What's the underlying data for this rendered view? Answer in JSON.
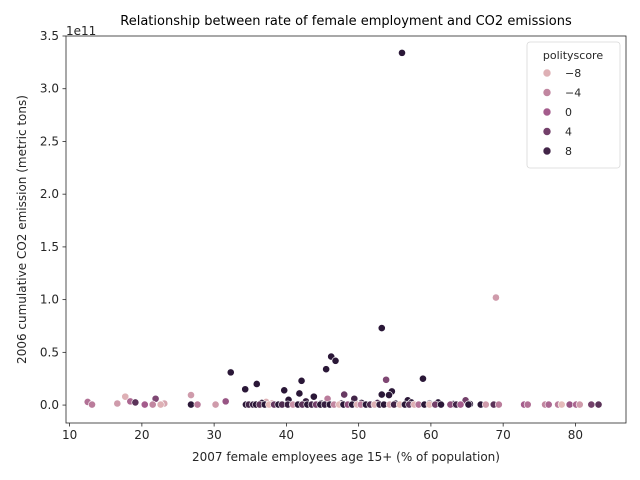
{
  "chart_data": {
    "type": "scatter",
    "title": "Relationship between rate of female employment and CO2 emissions",
    "xlabel": "2007 female employees age 15+ (% of population)",
    "ylabel": "2006 cumulative CO2 emission (metric tons)",
    "y_offset_text": "1e11",
    "xlim": [
      9.5,
      87
    ],
    "ylim": [
      -0.17,
      3.5
    ],
    "x_ticks": [
      10,
      20,
      30,
      40,
      50,
      60,
      70,
      80
    ],
    "x_tick_labels": [
      "10",
      "20",
      "30",
      "40",
      "50",
      "60",
      "70",
      "80"
    ],
    "y_ticks": [
      0,
      0.5,
      1.0,
      1.5,
      2.0,
      2.5,
      3.0,
      3.5
    ],
    "y_tick_labels": [
      "0.0",
      "0.5",
      "1.0",
      "1.5",
      "2.0",
      "2.5",
      "3.0",
      "3.5"
    ],
    "y_unit_scale": "1e11 metric tons",
    "hue_variable": "polityscore",
    "hue_range": [
      -10,
      10
    ],
    "colors": {
      "hue_low": "#ecc5bf",
      "hue_mid": "#a45c8c",
      "hue_high": "#2a1737"
    },
    "legend": {
      "title": "polityscore",
      "location": "upper right",
      "entries": [
        {
          "label": "−8",
          "value": -8
        },
        {
          "label": "−4",
          "value": -4
        },
        {
          "label": "0",
          "value": 0
        },
        {
          "label": "4",
          "value": 4
        },
        {
          "label": "8",
          "value": 8
        }
      ]
    },
    "points": [
      {
        "x": 56.0,
        "y": 3.34,
        "hue": 10
      },
      {
        "x": 69.0,
        "y": 1.02,
        "hue": -6
      },
      {
        "x": 53.2,
        "y": 0.73,
        "hue": 10
      },
      {
        "x": 46.2,
        "y": 0.46,
        "hue": 10
      },
      {
        "x": 46.8,
        "y": 0.42,
        "hue": 10
      },
      {
        "x": 45.5,
        "y": 0.34,
        "hue": 10
      },
      {
        "x": 32.3,
        "y": 0.31,
        "hue": 10
      },
      {
        "x": 58.9,
        "y": 0.25,
        "hue": 10
      },
      {
        "x": 53.8,
        "y": 0.24,
        "hue": 3
      },
      {
        "x": 42.1,
        "y": 0.23,
        "hue": 10
      },
      {
        "x": 35.9,
        "y": 0.2,
        "hue": 10
      },
      {
        "x": 34.3,
        "y": 0.15,
        "hue": 10
      },
      {
        "x": 39.7,
        "y": 0.14,
        "hue": 10
      },
      {
        "x": 54.6,
        "y": 0.13,
        "hue": 10
      },
      {
        "x": 41.8,
        "y": 0.11,
        "hue": 10
      },
      {
        "x": 53.2,
        "y": 0.1,
        "hue": 10
      },
      {
        "x": 48.0,
        "y": 0.1,
        "hue": 5
      },
      {
        "x": 54.2,
        "y": 0.095,
        "hue": 10
      },
      {
        "x": 26.8,
        "y": 0.095,
        "hue": -6
      },
      {
        "x": 43.8,
        "y": 0.08,
        "hue": 10
      },
      {
        "x": 17.7,
        "y": 0.08,
        "hue": -8
      },
      {
        "x": 49.4,
        "y": 0.06,
        "hue": 8
      },
      {
        "x": 21.9,
        "y": 0.06,
        "hue": 3
      },
      {
        "x": 45.7,
        "y": 0.06,
        "hue": -3
      },
      {
        "x": 40.3,
        "y": 0.05,
        "hue": 10
      },
      {
        "x": 56.8,
        "y": 0.045,
        "hue": 10
      },
      {
        "x": 64.8,
        "y": 0.045,
        "hue": 4
      },
      {
        "x": 18.4,
        "y": 0.035,
        "hue": -1
      },
      {
        "x": 31.6,
        "y": 0.035,
        "hue": 1
      },
      {
        "x": 42.7,
        "y": 0.035,
        "hue": 9
      },
      {
        "x": 37.2,
        "y": 0.03,
        "hue": -8
      },
      {
        "x": 12.5,
        "y": 0.03,
        "hue": -2
      },
      {
        "x": 19.1,
        "y": 0.025,
        "hue": 6
      },
      {
        "x": 61.0,
        "y": 0.025,
        "hue": 10
      },
      {
        "x": 57.3,
        "y": 0.025,
        "hue": 10
      },
      {
        "x": 50.4,
        "y": 0.02,
        "hue": 9
      },
      {
        "x": 52.6,
        "y": 0.02,
        "hue": 7
      },
      {
        "x": 23.1,
        "y": 0.015,
        "hue": -7
      },
      {
        "x": 16.6,
        "y": 0.015,
        "hue": -6
      },
      {
        "x": 36.6,
        "y": 0.02,
        "hue": 10
      },
      {
        "x": 38.0,
        "y": 0.015,
        "hue": -7
      },
      {
        "x": 44.8,
        "y": 0.015,
        "hue": 10
      },
      {
        "x": 47.6,
        "y": 0.015,
        "hue": 10
      },
      {
        "x": 55.1,
        "y": 0.015,
        "hue": 10
      },
      {
        "x": 59.8,
        "y": 0.015,
        "hue": 10
      },
      {
        "x": 65.4,
        "y": 0.01,
        "hue": 10
      },
      {
        "x": 63.1,
        "y": 0.01,
        "hue": 10
      },
      {
        "x": 13.1,
        "y": 0.005,
        "hue": -3
      },
      {
        "x": 20.4,
        "y": 0.005,
        "hue": 0
      },
      {
        "x": 21.5,
        "y": 0.005,
        "hue": -4
      },
      {
        "x": 22.6,
        "y": 0.005,
        "hue": -8
      },
      {
        "x": 26.8,
        "y": 0.005,
        "hue": 10
      },
      {
        "x": 27.7,
        "y": 0.005,
        "hue": -3
      },
      {
        "x": 30.2,
        "y": 0.005,
        "hue": -6
      },
      {
        "x": 34.4,
        "y": 0.005,
        "hue": 10
      },
      {
        "x": 34.8,
        "y": 0.005,
        "hue": 8
      },
      {
        "x": 35.4,
        "y": 0.005,
        "hue": 9
      },
      {
        "x": 35.8,
        "y": 0.005,
        "hue": 10
      },
      {
        "x": 36.3,
        "y": 0.005,
        "hue": 6
      },
      {
        "x": 37.0,
        "y": 0.005,
        "hue": 10
      },
      {
        "x": 37.6,
        "y": 0.005,
        "hue": -9
      },
      {
        "x": 38.3,
        "y": 0.005,
        "hue": 5
      },
      {
        "x": 38.9,
        "y": 0.005,
        "hue": 10
      },
      {
        "x": 39.4,
        "y": 0.005,
        "hue": 7
      },
      {
        "x": 40.2,
        "y": 0.005,
        "hue": 9
      },
      {
        "x": 40.9,
        "y": 0.005,
        "hue": -5
      },
      {
        "x": 41.6,
        "y": 0.005,
        "hue": 10
      },
      {
        "x": 42.2,
        "y": 0.005,
        "hue": 6
      },
      {
        "x": 42.9,
        "y": 0.005,
        "hue": 10
      },
      {
        "x": 43.5,
        "y": 0.005,
        "hue": 8
      },
      {
        "x": 44.1,
        "y": 0.005,
        "hue": 4
      },
      {
        "x": 44.7,
        "y": 0.005,
        "hue": 10
      },
      {
        "x": 45.3,
        "y": 0.005,
        "hue": 9
      },
      {
        "x": 46.0,
        "y": 0.005,
        "hue": 10
      },
      {
        "x": 46.6,
        "y": 0.005,
        "hue": -4
      },
      {
        "x": 47.3,
        "y": 0.005,
        "hue": -9
      },
      {
        "x": 47.9,
        "y": 0.005,
        "hue": 10
      },
      {
        "x": 48.5,
        "y": 0.005,
        "hue": 2
      },
      {
        "x": 49.1,
        "y": 0.005,
        "hue": 10
      },
      {
        "x": 49.8,
        "y": 0.005,
        "hue": -8
      },
      {
        "x": 50.3,
        "y": 0.005,
        "hue": -3
      },
      {
        "x": 51.0,
        "y": 0.005,
        "hue": 10
      },
      {
        "x": 51.6,
        "y": 0.005,
        "hue": 7
      },
      {
        "x": 52.2,
        "y": 0.005,
        "hue": -8
      },
      {
        "x": 52.9,
        "y": 0.005,
        "hue": 9
      },
      {
        "x": 53.5,
        "y": 0.005,
        "hue": 10
      },
      {
        "x": 54.3,
        "y": 0.005,
        "hue": -7
      },
      {
        "x": 54.9,
        "y": 0.005,
        "hue": 8
      },
      {
        "x": 55.7,
        "y": 0.005,
        "hue": -9
      },
      {
        "x": 56.4,
        "y": 0.005,
        "hue": 10
      },
      {
        "x": 57.0,
        "y": 0.005,
        "hue": 6
      },
      {
        "x": 57.7,
        "y": 0.005,
        "hue": -8
      },
      {
        "x": 58.3,
        "y": 0.005,
        "hue": -2
      },
      {
        "x": 59.1,
        "y": 0.005,
        "hue": 10
      },
      {
        "x": 59.8,
        "y": 0.005,
        "hue": -9
      },
      {
        "x": 60.6,
        "y": 0.005,
        "hue": 4
      },
      {
        "x": 61.4,
        "y": 0.005,
        "hue": 10
      },
      {
        "x": 62.7,
        "y": 0.005,
        "hue": 2
      },
      {
        "x": 63.5,
        "y": 0.005,
        "hue": 8
      },
      {
        "x": 64.1,
        "y": 0.005,
        "hue": 0
      },
      {
        "x": 65.2,
        "y": 0.005,
        "hue": 10
      },
      {
        "x": 66.9,
        "y": 0.005,
        "hue": 10
      },
      {
        "x": 67.6,
        "y": 0.005,
        "hue": -6
      },
      {
        "x": 68.7,
        "y": 0.005,
        "hue": 6
      },
      {
        "x": 69.4,
        "y": 0.005,
        "hue": -3
      },
      {
        "x": 72.9,
        "y": 0.005,
        "hue": 0
      },
      {
        "x": 73.4,
        "y": 0.005,
        "hue": -2
      },
      {
        "x": 75.8,
        "y": 0.005,
        "hue": -4
      },
      {
        "x": 76.3,
        "y": 0.005,
        "hue": -1
      },
      {
        "x": 77.6,
        "y": 0.005,
        "hue": -3
      },
      {
        "x": 78.1,
        "y": 0.005,
        "hue": -9
      },
      {
        "x": 79.2,
        "y": 0.005,
        "hue": 1
      },
      {
        "x": 80.1,
        "y": 0.005,
        "hue": -1
      },
      {
        "x": 80.6,
        "y": 0.005,
        "hue": -6
      },
      {
        "x": 82.2,
        "y": 0.005,
        "hue": 4
      },
      {
        "x": 83.2,
        "y": 0.005,
        "hue": 6
      }
    ]
  }
}
